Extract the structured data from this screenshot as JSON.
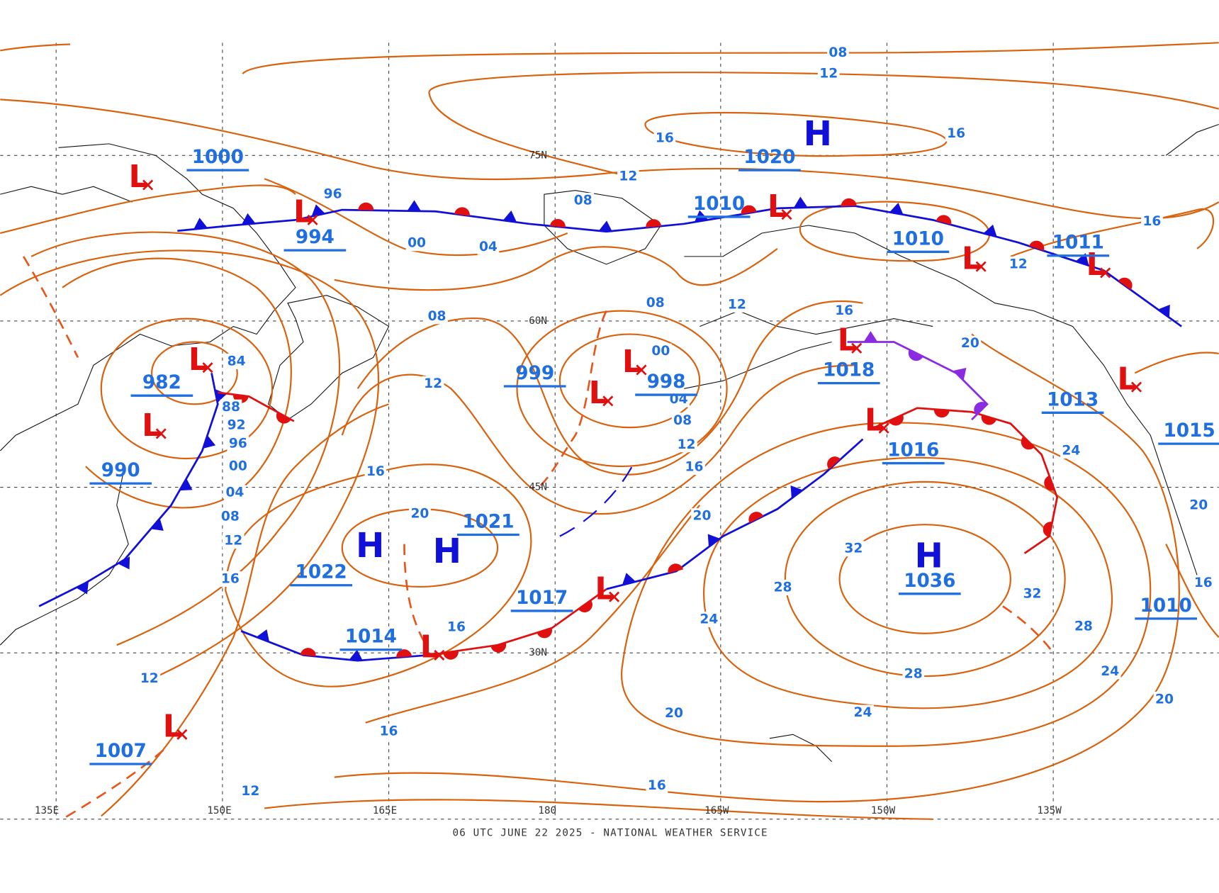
{
  "map": {
    "latitude_labels": [
      "75N",
      "60N",
      "45N",
      "30N"
    ],
    "longitude_labels": [
      "135E",
      "150E",
      "165E",
      "180",
      "165W",
      "150W",
      "135W"
    ],
    "highs": [
      "H",
      "H",
      "H",
      "H"
    ],
    "lows": [
      "L",
      "L",
      "L",
      "L",
      "L",
      "L",
      "L",
      "L",
      "L",
      "L",
      "L",
      "L",
      "L",
      "L",
      "L"
    ],
    "pressure_labels": [
      "1020",
      "1022",
      "1021",
      "1036",
      "1000",
      "994",
      "982",
      "990",
      "1007",
      "999",
      "998",
      "1014",
      "1017",
      "1010",
      "1010",
      "1011",
      "1018",
      "1016",
      "1013",
      "1015",
      "1010"
    ],
    "isobar_labels": [
      "08",
      "12",
      "16",
      "16",
      "12",
      "96",
      "08",
      "00",
      "04",
      "08",
      "08",
      "12",
      "16",
      "84",
      "00",
      "12",
      "04",
      "88",
      "92",
      "08",
      "96",
      "12",
      "00",
      "16",
      "16",
      "04",
      "08",
      "12",
      "20",
      "20",
      "16",
      "32",
      "28",
      "32",
      "24",
      "16",
      "28",
      "12",
      "28",
      "24",
      "20",
      "24",
      "20",
      "16",
      "16",
      "12",
      "12",
      "16",
      "20",
      "24",
      "20",
      "16"
    ],
    "footer": "06 UTC JUNE 22 2025 - NATIONAL WEATHER SERVICE"
  }
}
